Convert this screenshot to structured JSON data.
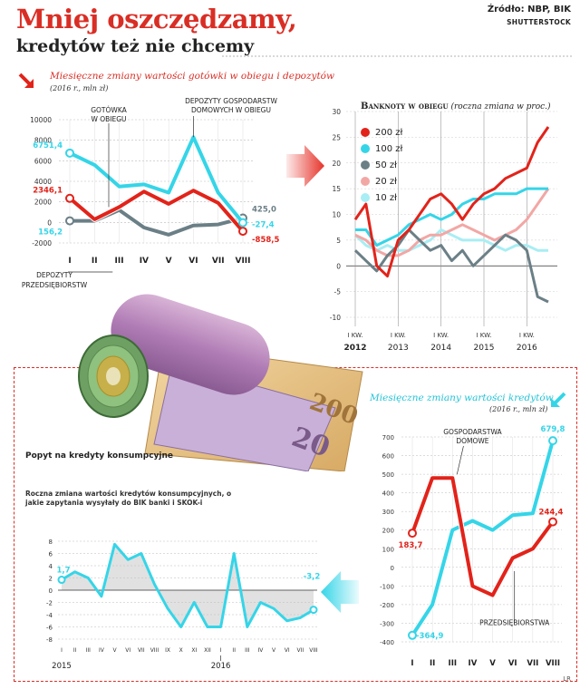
{
  "header": {
    "title": "Mniej oszczędzamy,",
    "subtitle": "kredytów też nie chcemy",
    "source": "Źródło: NBP, BIK",
    "photo_credit": "SHUTTERSTOCK"
  },
  "colors": {
    "red": "#e2231a",
    "cyan": "#35d5e8",
    "gray": "#6b7f86",
    "pink": "#f2a7a5",
    "lightcyan": "#a8eef4",
    "arrow_red": "#e6332a"
  },
  "chart_data": [
    {
      "id": "cash_deposits",
      "type": "line",
      "title": "Miesięczne zmiany wartości gotówki w obiegu i depozytów",
      "subtitle": "(2016 r., mln zł)",
      "categories": [
        "I",
        "II",
        "III",
        "IV",
        "V",
        "VI",
        "VII",
        "VIII"
      ],
      "ylim": [
        -2000,
        10000
      ],
      "yticks": [
        "10000",
        "8000",
        "6000",
        "4000",
        "2000",
        "0",
        "-2000"
      ],
      "yticks_num": [
        10000,
        8000,
        6000,
        4000,
        2000,
        0,
        -2000
      ],
      "series": [
        {
          "name": "DEPOZYTY GOSPODARSTW DOMOWYCH W OBIEGU",
          "color": "cyan",
          "values": [
            6751.4,
            5600,
            3500,
            3700,
            2900,
            8300,
            2900,
            -27.4
          ]
        },
        {
          "name": "GOTÓWKA W OBIEGU",
          "color": "red",
          "values": [
            2346.1,
            300,
            1500,
            3000,
            1800,
            3100,
            1900,
            -858.5
          ]
        },
        {
          "name": "DEPOZYTY PRZEDSIĘBIORSTW",
          "color": "gray",
          "values": [
            156.2,
            150,
            1200,
            -500,
            -1200,
            -300,
            -200,
            425.0
          ]
        }
      ],
      "annotations": [
        {
          "text": "6751,4",
          "color": "cyan"
        },
        {
          "text": "2346,1",
          "color": "red"
        },
        {
          "text": "156,2",
          "color": "cyan"
        },
        {
          "text": "425,0",
          "color": "gray"
        },
        {
          "text": "-27,4",
          "color": "cyan"
        },
        {
          "text": "-858,5",
          "color": "red"
        }
      ],
      "labels": {
        "gotowka": [
          "GOTÓWKA",
          "W OBIEGU"
        ],
        "depozyty_gd": [
          "DEPOZYTY GOSPODARSTW",
          "DOMOWYCH W OBIEGU"
        ],
        "depozyty_p": [
          "DEPOZYTY",
          "PRZEDSIĘBIORSTW"
        ]
      }
    },
    {
      "id": "banknotes",
      "type": "line",
      "title": "Banknoty w obiegu",
      "title_note": "(roczna zmiana w proc.)",
      "ylim": [
        -10,
        30
      ],
      "yticks": [
        "30",
        "25",
        "20",
        "15",
        "10",
        "5",
        "0",
        "-5",
        "-10"
      ],
      "yticks_num": [
        30,
        25,
        20,
        15,
        10,
        5,
        0,
        -5,
        -10
      ],
      "x_labels": [
        {
          "top": "I KW.",
          "bottom": "2012"
        },
        {
          "top": "I KW.",
          "bottom": "2013"
        },
        {
          "top": "I KW.",
          "bottom": "2014"
        },
        {
          "top": "I KW.",
          "bottom": "2015"
        },
        {
          "top": "I KW.",
          "bottom": "2016"
        }
      ],
      "series": [
        {
          "name": "200 zł",
          "color": "red",
          "values": [
            9,
            12,
            0,
            -2,
            5,
            7,
            10,
            13,
            14,
            12,
            9,
            12,
            14,
            15,
            17,
            18,
            19,
            24,
            27
          ]
        },
        {
          "name": "100 zł",
          "color": "cyan",
          "values": [
            7,
            7,
            4,
            5,
            6,
            8,
            9,
            10,
            9,
            10,
            12,
            13,
            13,
            14,
            14,
            14,
            15,
            15,
            15
          ]
        },
        {
          "name": "50 zł",
          "color": "gray",
          "values": [
            3,
            1,
            -1,
            2,
            4,
            7,
            5,
            3,
            4,
            1,
            3,
            0,
            2,
            4,
            6,
            5,
            3,
            -6,
            -7
          ]
        },
        {
          "name": "20 zł",
          "color": "pink",
          "values": [
            6,
            5,
            3,
            2,
            2,
            3,
            5,
            6,
            6,
            7,
            8,
            7,
            6,
            5,
            6,
            7,
            9,
            12,
            15
          ]
        },
        {
          "name": "10 zł",
          "color": "lightcyan",
          "values": [
            6,
            4,
            3,
            4,
            3,
            3,
            4,
            5,
            7,
            6,
            5,
            5,
            5,
            4,
            3,
            4,
            4,
            3,
            3
          ]
        }
      ]
    },
    {
      "id": "credit_demand",
      "type": "line",
      "title": "Popyt na kredyty konsumpcyjne",
      "description": "Roczna zmiana wartości kredytów konsumpcyjnych, o jakie zapytania wysyłały do BIK banki i SKOK-i",
      "ylim": [
        -8,
        8
      ],
      "yticks": [
        "8",
        "6",
        "4",
        "2",
        "0",
        "-2",
        "-4",
        "-6",
        "-8"
      ],
      "yticks_num": [
        8,
        6,
        4,
        2,
        0,
        -2,
        -4,
        -6,
        -8
      ],
      "categories": [
        "I",
        "II",
        "III",
        "IV",
        "V",
        "VI",
        "VII",
        "VIII",
        "IX",
        "X",
        "XI",
        "XII",
        "I",
        "II",
        "III",
        "IV",
        "V",
        "VI",
        "VII",
        "VIII"
      ],
      "year_labels": [
        "2015",
        "2016"
      ],
      "series": [
        {
          "name": "",
          "color": "cyan",
          "values": [
            1.7,
            3.0,
            2.0,
            -1.0,
            7.5,
            5.0,
            6.0,
            1.0,
            -3.0,
            -6.0,
            -2.0,
            -6.0,
            -6.0,
            6.0,
            -6.0,
            -2.0,
            -3.0,
            -5.0,
            -4.5,
            -3.2
          ]
        }
      ],
      "annotations": [
        {
          "text": "1,7",
          "color": "cyan"
        },
        {
          "text": "-3,2",
          "color": "cyan"
        }
      ]
    },
    {
      "id": "credits",
      "type": "line",
      "title": "Miesięczne zmiany wartości kredytów",
      "subtitle": "(2016 r., mln zł)",
      "categories": [
        "I",
        "II",
        "III",
        "IV",
        "V",
        "VI",
        "VII",
        "VIII"
      ],
      "ylim": [
        -400,
        700
      ],
      "yticks": [
        "700",
        "600",
        "500",
        "400",
        "300",
        "200",
        "100",
        "0",
        "-100",
        "-200",
        "-300",
        "-400"
      ],
      "yticks_num": [
        700,
        600,
        500,
        400,
        300,
        200,
        100,
        0,
        -100,
        -200,
        -300,
        -400
      ],
      "series": [
        {
          "name": "GOSPODARSTWA DOMOWE",
          "color": "red",
          "values": [
            183.7,
            480,
            480,
            -100,
            -150,
            50,
            100,
            244.4
          ]
        },
        {
          "name": "PRZEDSIĘBIORSTWA",
          "color": "cyan",
          "values": [
            -364.9,
            -200,
            200,
            250,
            200,
            280,
            290,
            679.8
          ]
        }
      ],
      "annotations": [
        {
          "text": "679,8",
          "color": "cyan"
        },
        {
          "text": "244,4",
          "color": "red"
        },
        {
          "text": "183,7",
          "color": "red"
        },
        {
          "text": "-364,9",
          "color": "cyan"
        }
      ],
      "labels": {
        "gd": [
          "GOSPODARSTWA",
          "DOMOWE"
        ],
        "p": "PRZEDSIĘBIORSTWA"
      }
    }
  ],
  "footer": "LR"
}
